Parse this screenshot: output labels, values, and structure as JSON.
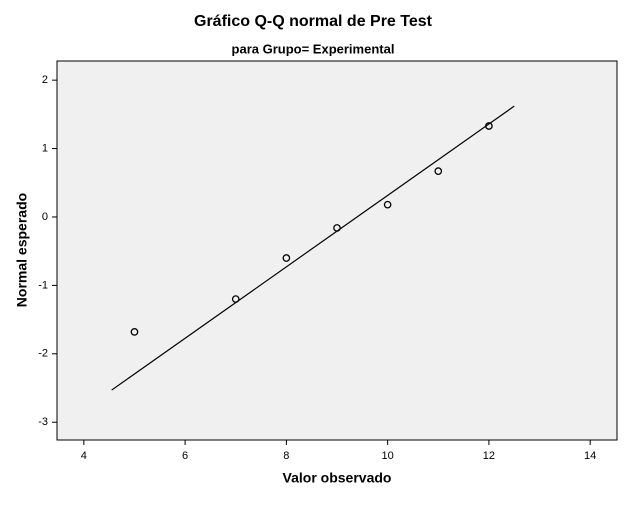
{
  "chart_data": {
    "type": "scatter",
    "title": "Gráfico Q-Q normal de Pre Test",
    "subtitle": "para Grupo= Experimental",
    "x_label": "Valor observado",
    "y_label": "Normal esperado",
    "x": [
      5,
      7,
      8,
      9,
      10,
      11,
      12
    ],
    "values": [
      -1.68,
      -1.2,
      -0.6,
      -0.16,
      0.18,
      0.67,
      1.33
    ],
    "color": "#000000",
    "reference_line": {
      "x": [
        4.55,
        12.5
      ],
      "y": [
        -2.53,
        1.62
      ]
    },
    "xlim": [
      3.47,
      14.53
    ],
    "xticks": [
      4,
      6,
      8,
      10,
      12,
      14
    ],
    "ylim": [
      -3.26,
      2.28
    ],
    "yticks": [
      -3,
      -2,
      -1,
      0,
      1,
      2
    ],
    "grid": false
  }
}
